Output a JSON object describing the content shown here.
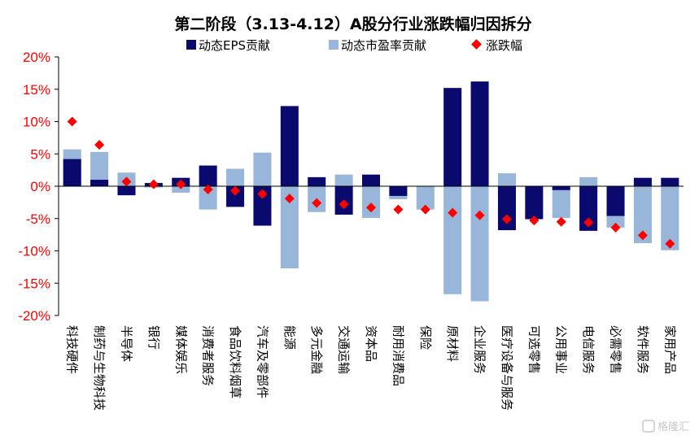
{
  "chart_data": {
    "type": "bar",
    "title": "第二阶段（3.13-4.12）A股分行业涨跌幅归因拆分",
    "xlabel": "",
    "ylabel": "",
    "ylim": [
      -20,
      20
    ],
    "ytick_values": [
      20,
      15,
      10,
      5,
      0,
      -5,
      -10,
      -15,
      -20
    ],
    "ytick_labels": [
      "20%",
      "15%",
      "10%",
      "5%",
      "0%",
      "-5%",
      "-10%",
      "-15%",
      "-20%"
    ],
    "legend_position": "top",
    "categories": [
      "科技硬件",
      "制药与生物科技",
      "半导体",
      "银行",
      "媒体娱乐",
      "消费者服务",
      "食品饮料烟草",
      "汽车及零部件",
      "能源",
      "多元金融",
      "交通运输",
      "资本品",
      "耐用消费品",
      "保险",
      "原材料",
      "企业服务",
      "医疗设备与服务",
      "可选零售",
      "公用事业",
      "电信服务",
      "必需零售",
      "软件服务",
      "家用产品"
    ],
    "series": [
      {
        "name": "动态EPS贡献",
        "type": "bar",
        "color": "#0a0a6e",
        "values": [
          4.2,
          1.0,
          -1.4,
          0.5,
          1.3,
          3.2,
          -3.2,
          -6.1,
          12.4,
          1.4,
          -4.4,
          1.8,
          -1.5,
          0.0,
          15.2,
          16.2,
          -6.8,
          -5.1,
          -0.6,
          -6.9,
          -4.6,
          1.3,
          1.3
        ]
      },
      {
        "name": "动态市盈率贡献",
        "type": "bar",
        "color": "#97b6d9",
        "values": [
          5.7,
          5.3,
          2.1,
          -0.2,
          -1.0,
          -3.6,
          2.7,
          5.2,
          -12.7,
          -4.0,
          1.8,
          -4.9,
          -2.0,
          -3.6,
          -16.7,
          -17.8,
          2.0,
          -0.1,
          -4.9,
          1.4,
          -6.4,
          -8.8,
          -9.9
        ]
      },
      {
        "name": "涨跌幅",
        "type": "marker",
        "color": "#ff0000",
        "values": [
          10.0,
          6.4,
          0.7,
          0.3,
          0.3,
          -0.5,
          -0.7,
          -1.2,
          -1.9,
          -2.6,
          -2.8,
          -3.3,
          -3.6,
          -3.6,
          -4.1,
          -4.5,
          -5.1,
          -5.3,
          -5.5,
          -5.6,
          -6.4,
          -7.6,
          -8.9
        ]
      }
    ]
  },
  "watermark": {
    "text": "格隆汇"
  }
}
